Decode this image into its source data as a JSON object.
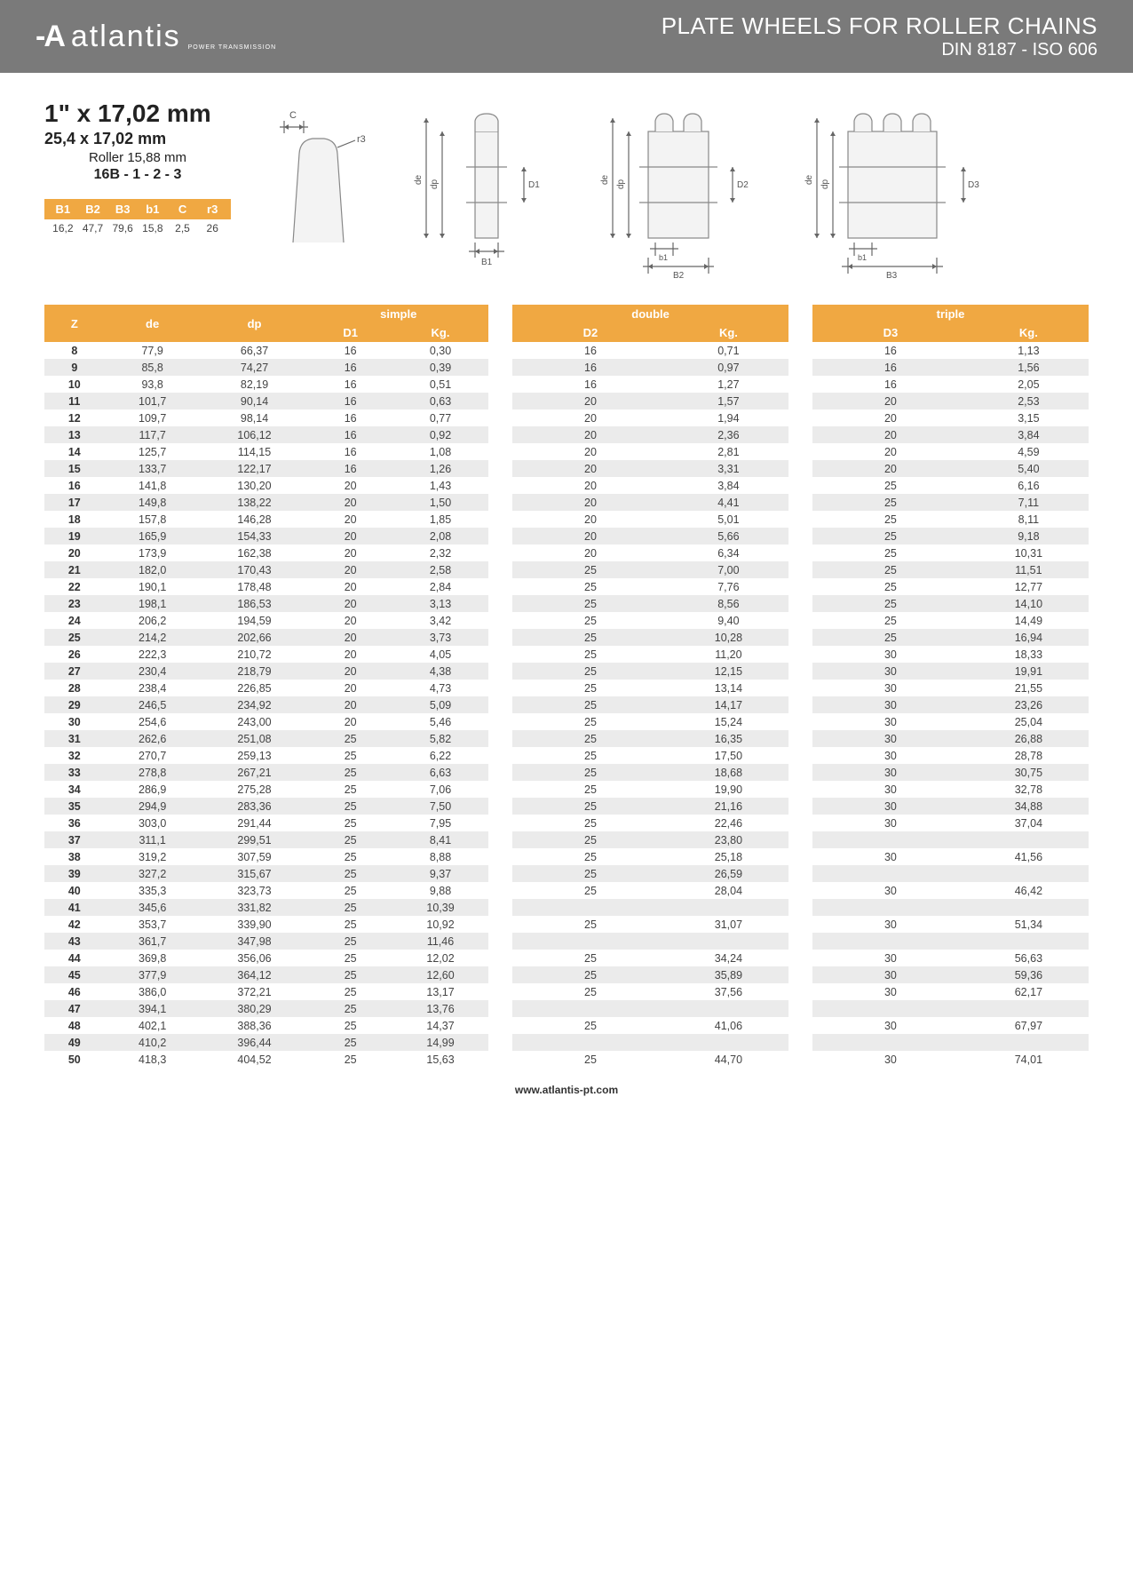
{
  "header": {
    "logo_text": "atlantis",
    "logo_sub": "POWER TRANSMISSION",
    "title_line1": "PLATE WHEELS FOR ROLLER CHAINS",
    "title_line2": "DIN 8187 - ISO 606"
  },
  "spec": {
    "main": "1\" x 17,02 mm",
    "sub1": "25,4 x 17,02 mm",
    "sub2": "Roller 15,88 mm",
    "sub3": "16B - 1 - 2 - 3"
  },
  "mini_table": {
    "headers": [
      "B1",
      "B2",
      "B3",
      "b1",
      "C",
      "r3"
    ],
    "values": [
      "16,2",
      "47,7",
      "79,6",
      "15,8",
      "2,5",
      "26"
    ]
  },
  "diagram_labels": {
    "C": "C",
    "r3": "r3",
    "de": "de",
    "dp": "dp",
    "D1": "D1",
    "D2": "D2",
    "D3": "D3",
    "B1": "B1",
    "B2": "B2",
    "B3": "B3",
    "b1": "b1"
  },
  "table": {
    "group_headers": {
      "z": "Z",
      "de": "de",
      "dp": "dp",
      "simple": "simple",
      "double": "double",
      "triple": "triple"
    },
    "sub_headers": {
      "D1": "D1",
      "D2": "D2",
      "D3": "D3",
      "Kg": "Kg."
    },
    "colors": {
      "header_bg": "#f0a842",
      "header_fg": "#ffffff",
      "row_alt_bg": "#ebebeb",
      "text": "#444444"
    },
    "rows": [
      {
        "z": "8",
        "de": "77,9",
        "dp": "66,37",
        "d1": "16",
        "kg1": "0,30",
        "d2": "16",
        "kg2": "0,71",
        "d3": "16",
        "kg3": "1,13"
      },
      {
        "z": "9",
        "de": "85,8",
        "dp": "74,27",
        "d1": "16",
        "kg1": "0,39",
        "d2": "16",
        "kg2": "0,97",
        "d3": "16",
        "kg3": "1,56"
      },
      {
        "z": "10",
        "de": "93,8",
        "dp": "82,19",
        "d1": "16",
        "kg1": "0,51",
        "d2": "16",
        "kg2": "1,27",
        "d3": "16",
        "kg3": "2,05"
      },
      {
        "z": "11",
        "de": "101,7",
        "dp": "90,14",
        "d1": "16",
        "kg1": "0,63",
        "d2": "20",
        "kg2": "1,57",
        "d3": "20",
        "kg3": "2,53"
      },
      {
        "z": "12",
        "de": "109,7",
        "dp": "98,14",
        "d1": "16",
        "kg1": "0,77",
        "d2": "20",
        "kg2": "1,94",
        "d3": "20",
        "kg3": "3,15"
      },
      {
        "z": "13",
        "de": "117,7",
        "dp": "106,12",
        "d1": "16",
        "kg1": "0,92",
        "d2": "20",
        "kg2": "2,36",
        "d3": "20",
        "kg3": "3,84"
      },
      {
        "z": "14",
        "de": "125,7",
        "dp": "114,15",
        "d1": "16",
        "kg1": "1,08",
        "d2": "20",
        "kg2": "2,81",
        "d3": "20",
        "kg3": "4,59"
      },
      {
        "z": "15",
        "de": "133,7",
        "dp": "122,17",
        "d1": "16",
        "kg1": "1,26",
        "d2": "20",
        "kg2": "3,31",
        "d3": "20",
        "kg3": "5,40"
      },
      {
        "z": "16",
        "de": "141,8",
        "dp": "130,20",
        "d1": "20",
        "kg1": "1,43",
        "d2": "20",
        "kg2": "3,84",
        "d3": "25",
        "kg3": "6,16"
      },
      {
        "z": "17",
        "de": "149,8",
        "dp": "138,22",
        "d1": "20",
        "kg1": "1,50",
        "d2": "20",
        "kg2": "4,41",
        "d3": "25",
        "kg3": "7,11"
      },
      {
        "z": "18",
        "de": "157,8",
        "dp": "146,28",
        "d1": "20",
        "kg1": "1,85",
        "d2": "20",
        "kg2": "5,01",
        "d3": "25",
        "kg3": "8,11"
      },
      {
        "z": "19",
        "de": "165,9",
        "dp": "154,33",
        "d1": "20",
        "kg1": "2,08",
        "d2": "20",
        "kg2": "5,66",
        "d3": "25",
        "kg3": "9,18"
      },
      {
        "z": "20",
        "de": "173,9",
        "dp": "162,38",
        "d1": "20",
        "kg1": "2,32",
        "d2": "20",
        "kg2": "6,34",
        "d3": "25",
        "kg3": "10,31"
      },
      {
        "z": "21",
        "de": "182,0",
        "dp": "170,43",
        "d1": "20",
        "kg1": "2,58",
        "d2": "25",
        "kg2": "7,00",
        "d3": "25",
        "kg3": "11,51"
      },
      {
        "z": "22",
        "de": "190,1",
        "dp": "178,48",
        "d1": "20",
        "kg1": "2,84",
        "d2": "25",
        "kg2": "7,76",
        "d3": "25",
        "kg3": "12,77"
      },
      {
        "z": "23",
        "de": "198,1",
        "dp": "186,53",
        "d1": "20",
        "kg1": "3,13",
        "d2": "25",
        "kg2": "8,56",
        "d3": "25",
        "kg3": "14,10"
      },
      {
        "z": "24",
        "de": "206,2",
        "dp": "194,59",
        "d1": "20",
        "kg1": "3,42",
        "d2": "25",
        "kg2": "9,40",
        "d3": "25",
        "kg3": "14,49"
      },
      {
        "z": "25",
        "de": "214,2",
        "dp": "202,66",
        "d1": "20",
        "kg1": "3,73",
        "d2": "25",
        "kg2": "10,28",
        "d3": "25",
        "kg3": "16,94"
      },
      {
        "z": "26",
        "de": "222,3",
        "dp": "210,72",
        "d1": "20",
        "kg1": "4,05",
        "d2": "25",
        "kg2": "11,20",
        "d3": "30",
        "kg3": "18,33"
      },
      {
        "z": "27",
        "de": "230,4",
        "dp": "218,79",
        "d1": "20",
        "kg1": "4,38",
        "d2": "25",
        "kg2": "12,15",
        "d3": "30",
        "kg3": "19,91"
      },
      {
        "z": "28",
        "de": "238,4",
        "dp": "226,85",
        "d1": "20",
        "kg1": "4,73",
        "d2": "25",
        "kg2": "13,14",
        "d3": "30",
        "kg3": "21,55"
      },
      {
        "z": "29",
        "de": "246,5",
        "dp": "234,92",
        "d1": "20",
        "kg1": "5,09",
        "d2": "25",
        "kg2": "14,17",
        "d3": "30",
        "kg3": "23,26"
      },
      {
        "z": "30",
        "de": "254,6",
        "dp": "243,00",
        "d1": "20",
        "kg1": "5,46",
        "d2": "25",
        "kg2": "15,24",
        "d3": "30",
        "kg3": "25,04"
      },
      {
        "z": "31",
        "de": "262,6",
        "dp": "251,08",
        "d1": "25",
        "kg1": "5,82",
        "d2": "25",
        "kg2": "16,35",
        "d3": "30",
        "kg3": "26,88"
      },
      {
        "z": "32",
        "de": "270,7",
        "dp": "259,13",
        "d1": "25",
        "kg1": "6,22",
        "d2": "25",
        "kg2": "17,50",
        "d3": "30",
        "kg3": "28,78"
      },
      {
        "z": "33",
        "de": "278,8",
        "dp": "267,21",
        "d1": "25",
        "kg1": "6,63",
        "d2": "25",
        "kg2": "18,68",
        "d3": "30",
        "kg3": "30,75"
      },
      {
        "z": "34",
        "de": "286,9",
        "dp": "275,28",
        "d1": "25",
        "kg1": "7,06",
        "d2": "25",
        "kg2": "19,90",
        "d3": "30",
        "kg3": "32,78"
      },
      {
        "z": "35",
        "de": "294,9",
        "dp": "283,36",
        "d1": "25",
        "kg1": "7,50",
        "d2": "25",
        "kg2": "21,16",
        "d3": "30",
        "kg3": "34,88"
      },
      {
        "z": "36",
        "de": "303,0",
        "dp": "291,44",
        "d1": "25",
        "kg1": "7,95",
        "d2": "25",
        "kg2": "22,46",
        "d3": "30",
        "kg3": "37,04"
      },
      {
        "z": "37",
        "de": "311,1",
        "dp": "299,51",
        "d1": "25",
        "kg1": "8,41",
        "d2": "25",
        "kg2": "23,80",
        "d3": "",
        "kg3": ""
      },
      {
        "z": "38",
        "de": "319,2",
        "dp": "307,59",
        "d1": "25",
        "kg1": "8,88",
        "d2": "25",
        "kg2": "25,18",
        "d3": "30",
        "kg3": "41,56"
      },
      {
        "z": "39",
        "de": "327,2",
        "dp": "315,67",
        "d1": "25",
        "kg1": "9,37",
        "d2": "25",
        "kg2": "26,59",
        "d3": "",
        "kg3": ""
      },
      {
        "z": "40",
        "de": "335,3",
        "dp": "323,73",
        "d1": "25",
        "kg1": "9,88",
        "d2": "25",
        "kg2": "28,04",
        "d3": "30",
        "kg3": "46,42"
      },
      {
        "z": "41",
        "de": "345,6",
        "dp": "331,82",
        "d1": "25",
        "kg1": "10,39",
        "d2": "",
        "kg2": "",
        "d3": "",
        "kg3": ""
      },
      {
        "z": "42",
        "de": "353,7",
        "dp": "339,90",
        "d1": "25",
        "kg1": "10,92",
        "d2": "25",
        "kg2": "31,07",
        "d3": "30",
        "kg3": "51,34"
      },
      {
        "z": "43",
        "de": "361,7",
        "dp": "347,98",
        "d1": "25",
        "kg1": "11,46",
        "d2": "",
        "kg2": "",
        "d3": "",
        "kg3": ""
      },
      {
        "z": "44",
        "de": "369,8",
        "dp": "356,06",
        "d1": "25",
        "kg1": "12,02",
        "d2": "25",
        "kg2": "34,24",
        "d3": "30",
        "kg3": "56,63"
      },
      {
        "z": "45",
        "de": "377,9",
        "dp": "364,12",
        "d1": "25",
        "kg1": "12,60",
        "d2": "25",
        "kg2": "35,89",
        "d3": "30",
        "kg3": "59,36"
      },
      {
        "z": "46",
        "de": "386,0",
        "dp": "372,21",
        "d1": "25",
        "kg1": "13,17",
        "d2": "25",
        "kg2": "37,56",
        "d3": "30",
        "kg3": "62,17"
      },
      {
        "z": "47",
        "de": "394,1",
        "dp": "380,29",
        "d1": "25",
        "kg1": "13,76",
        "d2": "",
        "kg2": "",
        "d3": "",
        "kg3": ""
      },
      {
        "z": "48",
        "de": "402,1",
        "dp": "388,36",
        "d1": "25",
        "kg1": "14,37",
        "d2": "25",
        "kg2": "41,06",
        "d3": "30",
        "kg3": "67,97"
      },
      {
        "z": "49",
        "de": "410,2",
        "dp": "396,44",
        "d1": "25",
        "kg1": "14,99",
        "d2": "",
        "kg2": "",
        "d3": "",
        "kg3": ""
      },
      {
        "z": "50",
        "de": "418,3",
        "dp": "404,52",
        "d1": "25",
        "kg1": "15,63",
        "d2": "25",
        "kg2": "44,70",
        "d3": "30",
        "kg3": "74,01"
      }
    ]
  },
  "footer": {
    "url": "www.atlantis-pt.com"
  }
}
